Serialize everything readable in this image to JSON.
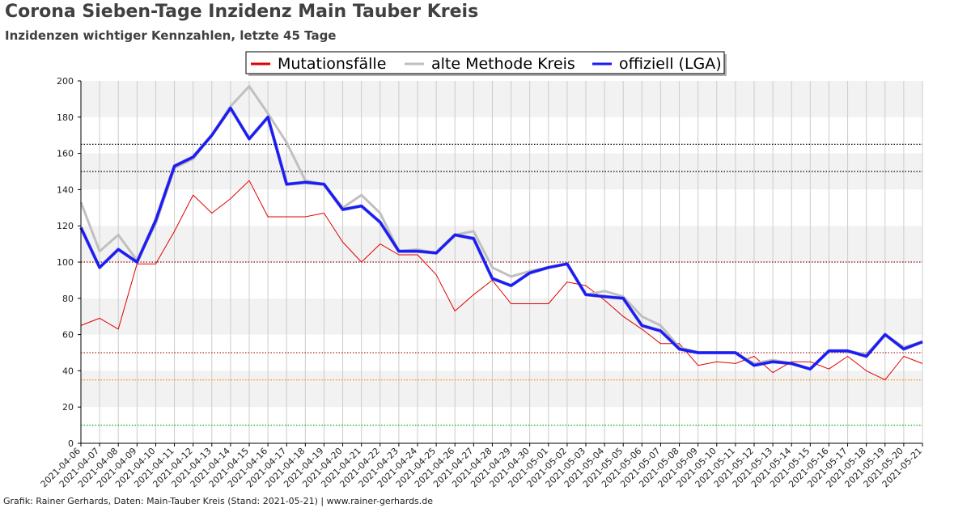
{
  "title": "Corona Sieben-Tage Inzidenz Main Tauber Kreis",
  "subtitle": "Inzidenzen wichtiger Kennzahlen, letzte 45 Tage",
  "footer": "Grafik: Rainer Gerhards, Daten: Main-Tauber Kreis (Stand: 2021-05-21) | www.rainer-gerhards.de",
  "chart_data": {
    "type": "line",
    "title": "Corona Sieben-Tage Inzidenz Main Tauber Kreis",
    "subtitle": "Inzidenzen wichtiger Kennzahlen, letzte 45 Tage",
    "xlabel": "",
    "ylabel": "",
    "ylim": [
      0,
      200
    ],
    "yticks": [
      0,
      20,
      40,
      60,
      80,
      100,
      120,
      140,
      160,
      180,
      200
    ],
    "grid": true,
    "legend_position": "top-center",
    "x": [
      "2021-04-06",
      "2021-04-07",
      "2021-04-08",
      "2021-04-09",
      "2021-04-10",
      "2021-04-11",
      "2021-04-12",
      "2021-04-13",
      "2021-04-14",
      "2021-04-15",
      "2021-04-16",
      "2021-04-17",
      "2021-04-18",
      "2021-04-19",
      "2021-04-20",
      "2021-04-21",
      "2021-04-22",
      "2021-04-23",
      "2021-04-24",
      "2021-04-25",
      "2021-04-26",
      "2021-04-27",
      "2021-04-28",
      "2021-04-29",
      "2021-04-30",
      "2021-05-01",
      "2021-05-02",
      "2021-05-03",
      "2021-05-04",
      "2021-05-05",
      "2021-05-06",
      "2021-05-07",
      "2021-05-08",
      "2021-05-09",
      "2021-05-10",
      "2021-05-11",
      "2021-05-12",
      "2021-05-13",
      "2021-05-14",
      "2021-05-15",
      "2021-05-16",
      "2021-05-17",
      "2021-05-18",
      "2021-05-19",
      "2021-05-20",
      "2021-05-21"
    ],
    "series": [
      {
        "name": "Mutationsfälle",
        "color": "#e00000",
        "width": 1,
        "values": [
          65,
          69,
          63,
          99,
          99,
          117,
          137,
          127,
          135,
          145,
          125,
          125,
          125,
          127,
          111,
          100,
          110,
          104,
          104,
          93,
          73,
          82,
          90,
          77,
          77,
          77,
          89,
          87,
          79,
          70,
          63,
          55,
          55,
          43,
          45,
          44,
          48,
          39,
          45,
          45,
          41,
          48,
          40,
          35,
          48,
          44
        ]
      },
      {
        "name": "alte Methode Kreis",
        "color": "#c0c0c0",
        "width": 3,
        "values": [
          133,
          106,
          115,
          101,
          121,
          152,
          157,
          170,
          186,
          197,
          182,
          166,
          145,
          143,
          130,
          137,
          127,
          106,
          107,
          105,
          115,
          117,
          97,
          92,
          95,
          97,
          99,
          82,
          84,
          81,
          70,
          65,
          53,
          50,
          50,
          50,
          44,
          46,
          44,
          41,
          51,
          51,
          49,
          60,
          53,
          56
        ]
      },
      {
        "name": "offiziell (LGA)",
        "color": "#1a1aff",
        "width": 3,
        "values": [
          119,
          97,
          107,
          100,
          123,
          153,
          158,
          170,
          185,
          168,
          180,
          143,
          144,
          143,
          129,
          131,
          122,
          106,
          106,
          105,
          115,
          113,
          91,
          87,
          94,
          97,
          99,
          82,
          81,
          80,
          65,
          62,
          52,
          50,
          50,
          50,
          43,
          45,
          44,
          41,
          51,
          51,
          48,
          60,
          52,
          56
        ]
      }
    ],
    "reference_lines": [
      {
        "value": 165,
        "color": "#000000"
      },
      {
        "value": 150,
        "color": "#000000"
      },
      {
        "value": 100,
        "color": "#8b0000"
      },
      {
        "value": 50,
        "color": "#b22222"
      },
      {
        "value": 35,
        "color": "#ff8c00"
      },
      {
        "value": 10,
        "color": "#00b000"
      }
    ]
  }
}
